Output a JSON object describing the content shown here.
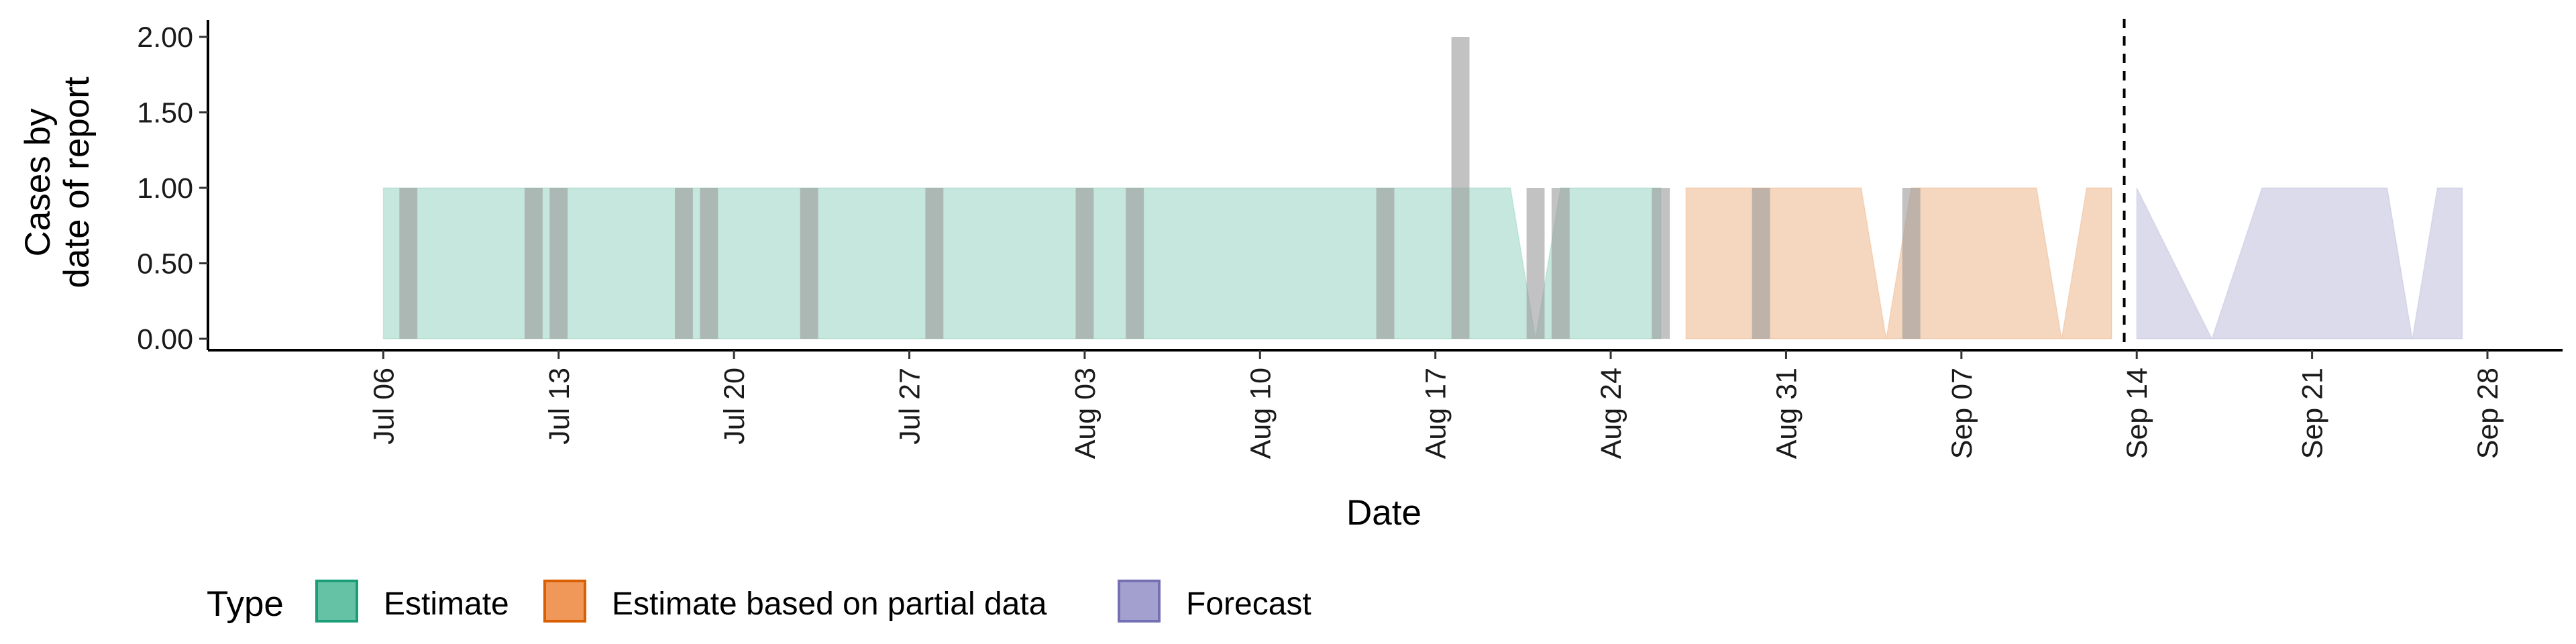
{
  "chart_data": {
    "type": "area",
    "ylabel": [
      "Cases by",
      "date of report"
    ],
    "xlabel": "Date",
    "ylim": [
      0,
      2.08
    ],
    "xlim": [
      "2020-06-29",
      "2020-10-01"
    ],
    "y_ticks": [
      {
        "value": 0,
        "label": "0.00"
      },
      {
        "value": 0.5,
        "label": "0.50"
      },
      {
        "value": 1,
        "label": "1.00"
      },
      {
        "value": 1.5,
        "label": "1.50"
      },
      {
        "value": 2,
        "label": "2.00"
      }
    ],
    "x_ticks": [
      {
        "date": "2020-07-06",
        "label": "Jul 06"
      },
      {
        "date": "2020-07-13",
        "label": "Jul 13"
      },
      {
        "date": "2020-07-20",
        "label": "Jul 20"
      },
      {
        "date": "2020-07-27",
        "label": "Jul 27"
      },
      {
        "date": "2020-08-03",
        "label": "Aug 03"
      },
      {
        "date": "2020-08-10",
        "label": "Aug 10"
      },
      {
        "date": "2020-08-17",
        "label": "Aug 17"
      },
      {
        "date": "2020-08-24",
        "label": "Aug 24"
      },
      {
        "date": "2020-08-31",
        "label": "Aug 31"
      },
      {
        "date": "2020-09-07",
        "label": "Sep 07"
      },
      {
        "date": "2020-09-14",
        "label": "Sep 14"
      },
      {
        "date": "2020-09-21",
        "label": "Sep 21"
      },
      {
        "date": "2020-09-28",
        "label": "Sep 28"
      }
    ],
    "forecast_date": "2020-09-13",
    "series": [
      {
        "name": "Estimate",
        "fill": "#1b9e77",
        "ribbon": [
          {
            "date": "2020-07-06",
            "lower": 0,
            "upper": 1
          },
          {
            "date": "2020-08-20",
            "lower": 0,
            "upper": 1
          },
          {
            "date": "2020-08-21",
            "lower": 0,
            "upper": 0
          },
          {
            "date": "2020-08-22",
            "lower": 0,
            "upper": 1
          },
          {
            "date": "2020-08-26",
            "lower": 0,
            "upper": 1
          }
        ]
      },
      {
        "name": "Estimate based on partial data",
        "fill": "#d95f02",
        "ribbon": [
          {
            "date": "2020-08-27",
            "lower": 0,
            "upper": 1
          },
          {
            "date": "2020-09-03",
            "lower": 0,
            "upper": 1
          },
          {
            "date": "2020-09-04",
            "lower": 0,
            "upper": 0
          },
          {
            "date": "2020-09-05",
            "lower": 0,
            "upper": 1
          },
          {
            "date": "2020-09-10",
            "lower": 0,
            "upper": 1
          },
          {
            "date": "2020-09-11",
            "lower": 0,
            "upper": 0
          },
          {
            "date": "2020-09-12",
            "lower": 0,
            "upper": 1
          },
          {
            "date": "2020-09-13",
            "lower": 0,
            "upper": 1
          }
        ]
      },
      {
        "name": "Forecast",
        "fill": "#7570b3",
        "ribbon": [
          {
            "date": "2020-09-14",
            "lower": 0,
            "upper": 1
          },
          {
            "date": "2020-09-17",
            "lower": 0,
            "upper": 0
          },
          {
            "date": "2020-09-19",
            "lower": 0,
            "upper": 1
          },
          {
            "date": "2020-09-24",
            "lower": 0,
            "upper": 1
          },
          {
            "date": "2020-09-25",
            "lower": 0,
            "upper": 0
          },
          {
            "date": "2020-09-26",
            "lower": 0,
            "upper": 1
          },
          {
            "date": "2020-09-27",
            "lower": 0,
            "upper": 1
          }
        ]
      }
    ],
    "reported_cases": [
      {
        "date": "2020-07-07",
        "value": 1,
        "type": "Estimate"
      },
      {
        "date": "2020-07-12",
        "value": 1,
        "type": "Estimate"
      },
      {
        "date": "2020-07-13",
        "value": 1,
        "type": "Estimate"
      },
      {
        "date": "2020-07-18",
        "value": 1,
        "type": "Estimate"
      },
      {
        "date": "2020-07-19",
        "value": 1,
        "type": "Estimate"
      },
      {
        "date": "2020-07-23",
        "value": 1,
        "type": "Estimate"
      },
      {
        "date": "2020-07-28",
        "value": 1,
        "type": "Estimate"
      },
      {
        "date": "2020-08-03",
        "value": 1,
        "type": "Estimate"
      },
      {
        "date": "2020-08-05",
        "value": 1,
        "type": "Estimate"
      },
      {
        "date": "2020-08-15",
        "value": 1,
        "type": "Estimate"
      },
      {
        "date": "2020-08-18",
        "value": 2,
        "type": "Estimate"
      },
      {
        "date": "2020-08-21",
        "value": 1,
        "type": "Estimate"
      },
      {
        "date": "2020-08-22",
        "value": 1,
        "type": "Estimate"
      },
      {
        "date": "2020-08-26",
        "value": 1,
        "type": "Estimate"
      },
      {
        "date": "2020-08-30",
        "value": 1,
        "type": "Estimate based on partial data"
      },
      {
        "date": "2020-09-05",
        "value": 1,
        "type": "Estimate based on partial data"
      }
    ],
    "bar_color": "#9a9a9a",
    "legend": {
      "title": "Type",
      "position": "bottom-left",
      "items": [
        {
          "label": "Estimate",
          "fill": "#66c2a5",
          "stroke": "#1b9e77"
        },
        {
          "label": "Estimate based on partial data",
          "fill": "#f0975a",
          "stroke": "#d95f02"
        },
        {
          "label": "Forecast",
          "fill": "#a39fcf",
          "stroke": "#7570b3"
        }
      ]
    }
  }
}
